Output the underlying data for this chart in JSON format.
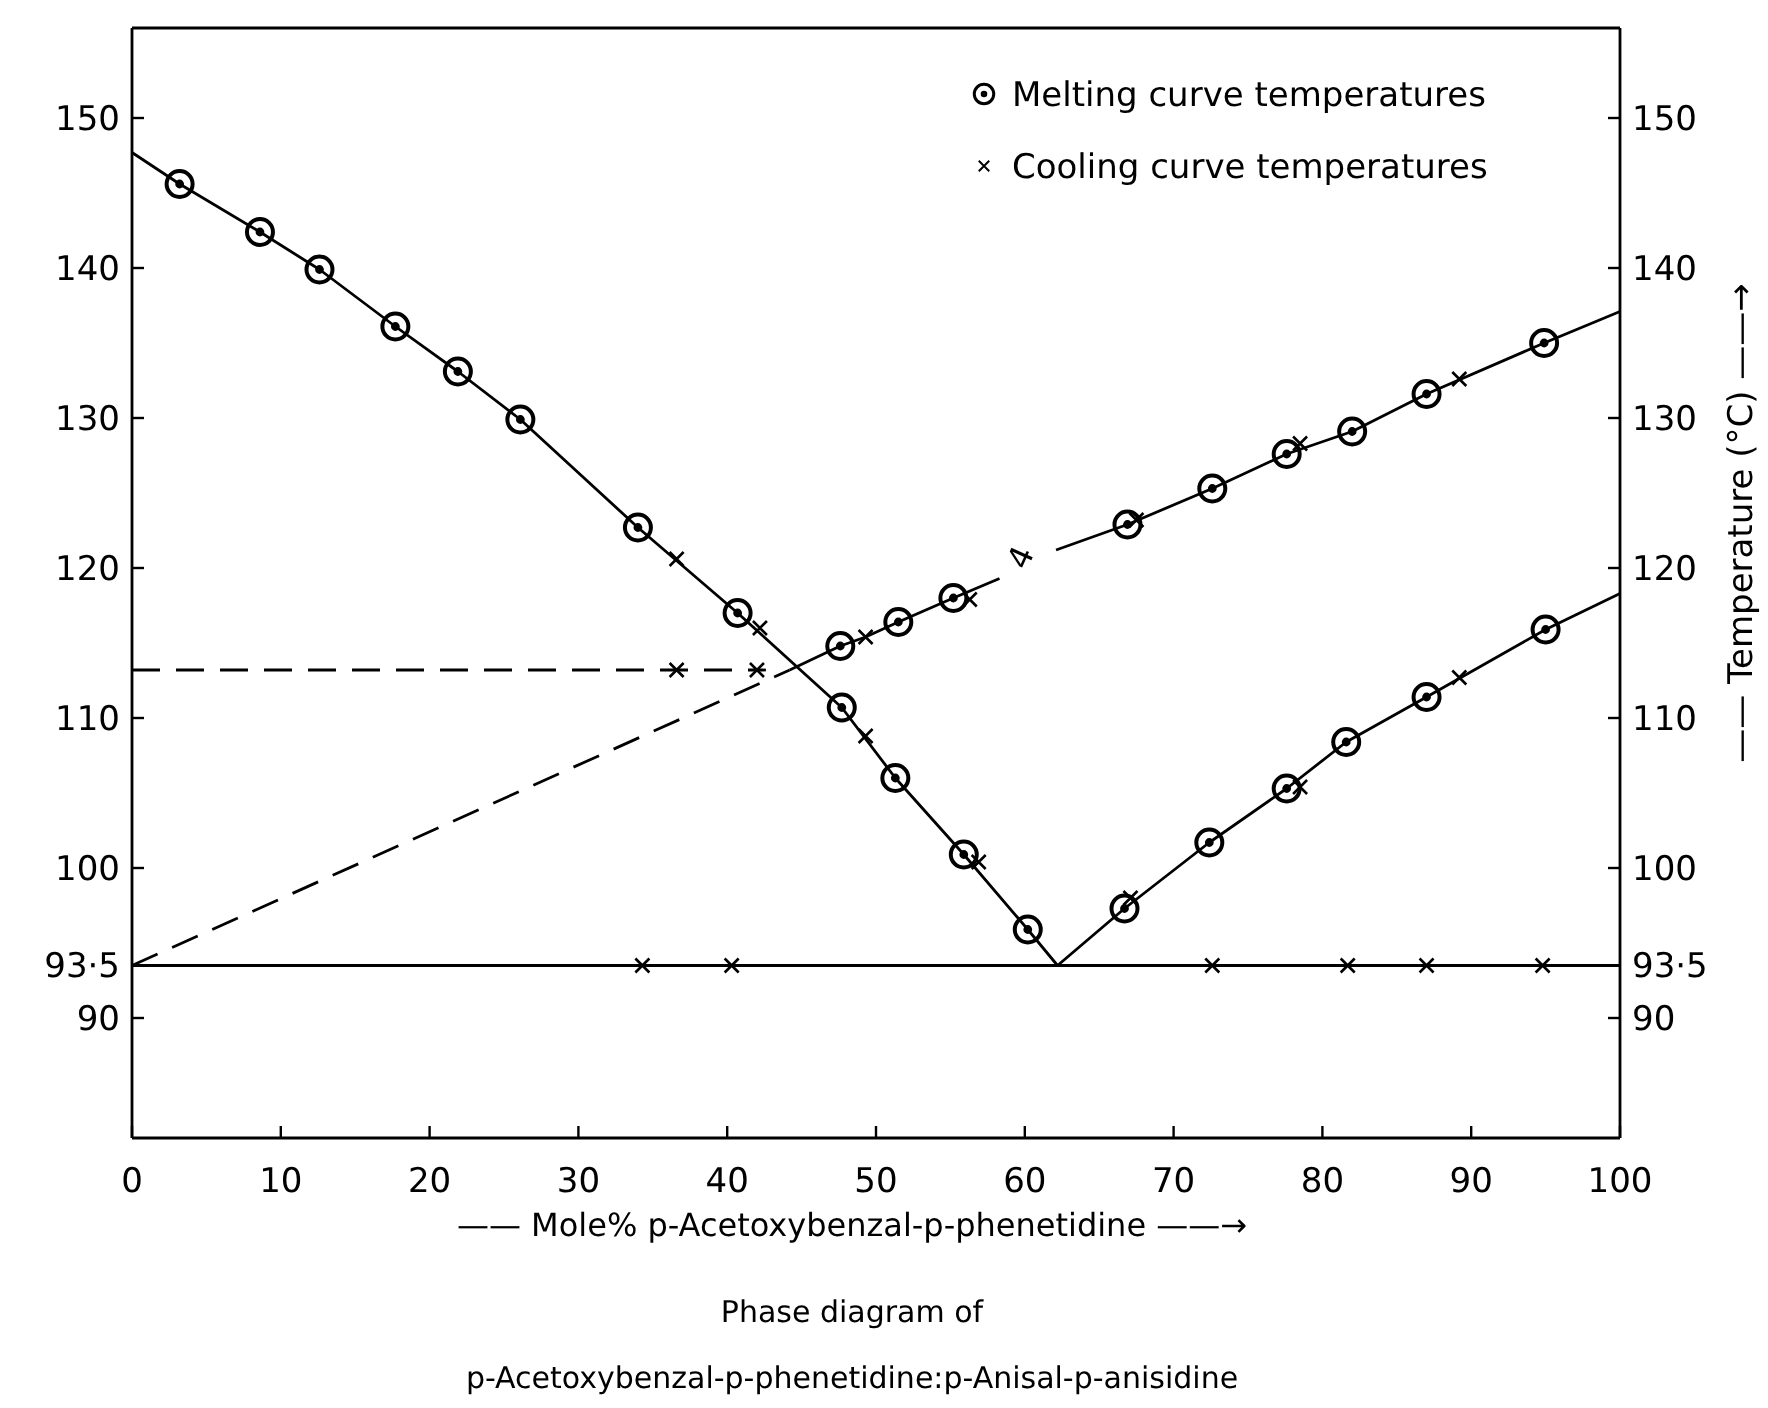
{
  "chart_data": {
    "type": "scatter",
    "title": "Phase diagram of",
    "subtitle": "p-Acetoxybenzal-p-phenetidine:p-Anisal-p-anisidine",
    "xlabel": "—— Mole% p-Acetoxybenzal-p-phenetidine ——→",
    "y2label": "—— Temperature  (°C) ——→",
    "xlim": [
      0,
      100
    ],
    "xticks": [
      0,
      10,
      20,
      30,
      40,
      50,
      60,
      70,
      80,
      90,
      100
    ],
    "ylim": [
      82,
      156
    ],
    "yticks": [
      90,
      {
        "value": 93.5,
        "label": "93·5"
      },
      100,
      110,
      120,
      130,
      140,
      150
    ],
    "y2lim": [
      82,
      156
    ],
    "y2ticks": [
      90,
      {
        "value": 93.5,
        "label": "93·5"
      },
      100,
      110,
      120,
      130,
      140,
      150
    ],
    "legend": "top right",
    "ref_lines": [
      {
        "axis": "y",
        "value": 93.5,
        "color": "#000000",
        "line_style": "solid"
      }
    ],
    "annotations": [
      "4"
    ],
    "series": [
      {
        "name": "Melting curve temperatures",
        "color": "#000000",
        "marker": "circle",
        "x": [
          3.2,
          8.6,
          12.6,
          17.7,
          21.9,
          26.1,
          34.0,
          40.7,
          47.7,
          51.3,
          55.9,
          60.2,
          66.7,
          72.4,
          77.6,
          81.6,
          87.0,
          95.0,
          47.6,
          51.5,
          55.2,
          66.9,
          72.6,
          77.6,
          82.0,
          87.0,
          94.9
        ],
        "values": [
          145.6,
          142.4,
          139.9,
          136.1,
          133.1,
          129.9,
          122.7,
          117.0,
          110.7,
          106.0,
          100.9,
          95.9,
          97.3,
          101.7,
          105.3,
          108.4,
          111.4,
          115.9,
          114.8,
          116.4,
          118.0,
          122.9,
          125.3,
          127.6,
          129.1,
          131.6,
          135.0
        ]
      },
      {
        "name": "Cooling curve temperatures",
        "color": "#000000",
        "marker": "cross",
        "x": [
          36.6,
          42.2,
          49.3,
          56.9,
          67.1,
          78.5,
          89.2,
          49.3,
          56.3,
          67.5,
          78.5,
          89.2,
          34.3,
          40.3,
          72.6,
          81.7,
          87.0,
          94.8,
          36.6,
          42.0
        ],
        "values": [
          120.6,
          116.0,
          108.8,
          100.4,
          98.0,
          105.4,
          112.7,
          115.4,
          117.9,
          123.2,
          128.3,
          132.6,
          93.5,
          93.5,
          93.5,
          93.5,
          93.5,
          93.5,
          113.2,
          113.2
        ]
      },
      {
        "type": "line",
        "color": "#000000",
        "marker": "none",
        "line_style": "solid",
        "x": [
          0,
          3.2,
          8.6,
          12.6,
          17.7,
          21.9,
          26.1,
          34.0,
          40.7,
          47.7,
          51.3,
          55.9,
          60.2,
          62.2
        ],
        "values": [
          147.7,
          145.6,
          142.4,
          139.9,
          136.1,
          133.1,
          129.9,
          122.7,
          117.0,
          110.7,
          106.0,
          100.9,
          95.9,
          93.5
        ]
      },
      {
        "type": "line",
        "color": "#000000",
        "marker": "none",
        "line_style": "solid",
        "x": [
          62.2,
          66.7,
          72.4,
          77.6,
          81.6,
          87.0,
          95.0,
          100
        ],
        "values": [
          93.5,
          97.3,
          101.7,
          105.3,
          108.4,
          111.4,
          115.9,
          118.3
        ]
      },
      {
        "type": "line",
        "color": "#000000",
        "marker": "none",
        "line_style": "solid",
        "x": [
          44.2,
          47.6,
          49.3,
          51.5,
          55.2,
          58.3,
          59.7,
          62.1,
          66.9,
          72.6,
          77.6,
          82.0,
          87.0,
          94.9,
          100
        ],
        "values": [
          113.2,
          114.8,
          115.4,
          116.4,
          118.0,
          119.3,
          null,
          121.2,
          122.9,
          125.3,
          127.6,
          129.1,
          131.6,
          135.0,
          137.1
        ]
      },
      {
        "type": "line",
        "color": "#000000",
        "marker": "none",
        "line_style": "dashed",
        "x": [
          0,
          44.2
        ],
        "values": [
          93.5,
          113.2
        ]
      },
      {
        "type": "line",
        "color": "#000000",
        "marker": "none",
        "line_style": "dashed",
        "x": [
          0,
          42.6
        ],
        "values": [
          113.2,
          113.2
        ]
      }
    ]
  }
}
